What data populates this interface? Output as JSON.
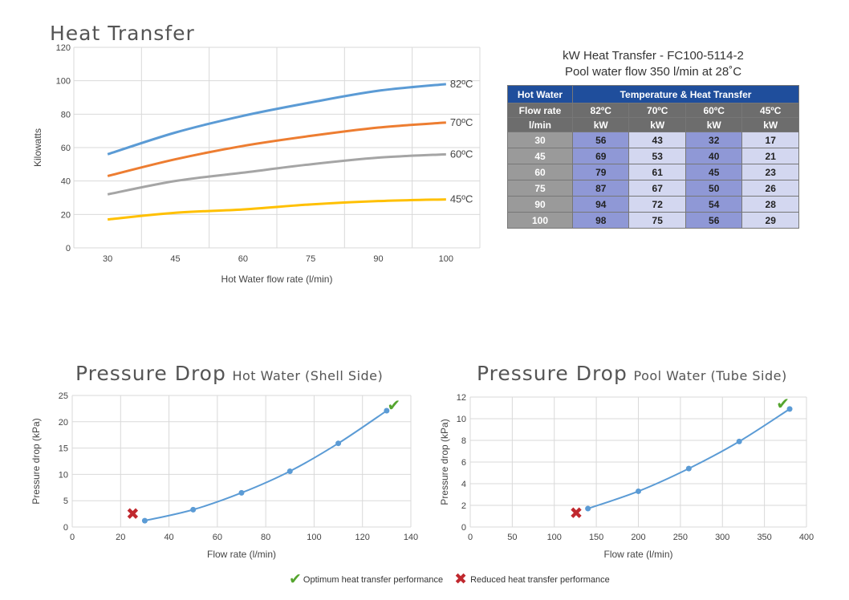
{
  "titles": {
    "heat": "Heat Transfer",
    "pd_hot_big": "Pressure Drop",
    "pd_hot_small": "Hot Water (Shell Side)",
    "pd_pool_big": "Pressure Drop",
    "pd_pool_small": "Pool Water (Tube Side)"
  },
  "table": {
    "caption_line1": "kW Heat Transfer - FC100-5114-2",
    "caption_line2": "Pool water flow 350 l/min at 28˚C",
    "head_left": "Hot Water",
    "head_right": "Temperature & Heat Transfer",
    "sub1": [
      "Flow rate",
      "82ºC",
      "70ºC",
      "60ºC",
      "45ºC"
    ],
    "sub2": [
      "l/min",
      "kW",
      "kW",
      "kW",
      "kW"
    ],
    "rows": [
      [
        "30",
        "56",
        "43",
        "32",
        "17"
      ],
      [
        "45",
        "69",
        "53",
        "40",
        "21"
      ],
      [
        "60",
        "79",
        "61",
        "45",
        "23"
      ],
      [
        "75",
        "87",
        "67",
        "50",
        "26"
      ],
      [
        "90",
        "94",
        "72",
        "54",
        "28"
      ],
      [
        "100",
        "98",
        "75",
        "56",
        "29"
      ]
    ]
  },
  "legend": {
    "optimum": "Optimum heat transfer performance",
    "reduced": "Reduced heat transfer performance",
    "check_color": "#55a52f",
    "cross_color": "#c0282e"
  },
  "chart_data": [
    {
      "type": "line",
      "title": "Heat Transfer",
      "xlabel": "Hot Water flow rate (l/min)",
      "ylabel": "Kilowatts",
      "categories": [
        "30",
        "45",
        "60",
        "75",
        "90",
        "100"
      ],
      "ylim": [
        0,
        120
      ],
      "yticks": [
        0,
        20,
        40,
        60,
        80,
        100,
        120
      ],
      "grid": true,
      "series": [
        {
          "name": "82ºC",
          "values": [
            56,
            69,
            79,
            87,
            94,
            98
          ],
          "color": "#5b9bd5"
        },
        {
          "name": "70ºC",
          "values": [
            43,
            53,
            61,
            67,
            72,
            75
          ],
          "color": "#ed7d31"
        },
        {
          "name": "60ºC",
          "values": [
            32,
            40,
            45,
            50,
            54,
            56
          ],
          "color": "#a5a5a5"
        },
        {
          "name": "45ºC",
          "values": [
            17,
            21,
            23,
            26,
            28,
            29
          ],
          "color": "#ffc000"
        }
      ]
    },
    {
      "type": "scatter",
      "title": "Pressure Drop Hot Water (Shell Side)",
      "xlabel": "Flow rate (l/min)",
      "ylabel": "Pressure drop (kPa)",
      "xlim": [
        0,
        140
      ],
      "xticks": [
        0,
        20,
        40,
        60,
        80,
        100,
        120,
        140
      ],
      "ylim": [
        0,
        25
      ],
      "yticks": [
        0,
        5,
        10,
        15,
        20,
        25
      ],
      "grid": true,
      "color": "#5b9bd5",
      "x": [
        30,
        50,
        70,
        90,
        110,
        130
      ],
      "y": [
        1.2,
        3.3,
        6.5,
        10.6,
        15.9,
        22.1
      ],
      "annotations": [
        {
          "marker": "check",
          "x": 133,
          "y": 23.2
        },
        {
          "marker": "cross",
          "x": 25,
          "y": 2.5
        }
      ]
    },
    {
      "type": "scatter",
      "title": "Pressure Drop Pool Water (Tube Side)",
      "xlabel": "Flow rate (l/min)",
      "ylabel": "Pressure drop (kPa)",
      "xlim": [
        0,
        400
      ],
      "xticks": [
        0,
        50,
        100,
        150,
        200,
        250,
        300,
        350,
        400
      ],
      "ylim": [
        0,
        12
      ],
      "yticks": [
        0,
        2,
        4,
        6,
        8,
        10,
        12
      ],
      "grid": true,
      "color": "#5b9bd5",
      "x": [
        140,
        200,
        260,
        320,
        380
      ],
      "y": [
        1.7,
        3.3,
        5.4,
        7.9,
        10.9
      ],
      "annotations": [
        {
          "marker": "check",
          "x": 372,
          "y": 11.4
        },
        {
          "marker": "cross",
          "x": 126,
          "y": 1.3
        }
      ]
    }
  ]
}
